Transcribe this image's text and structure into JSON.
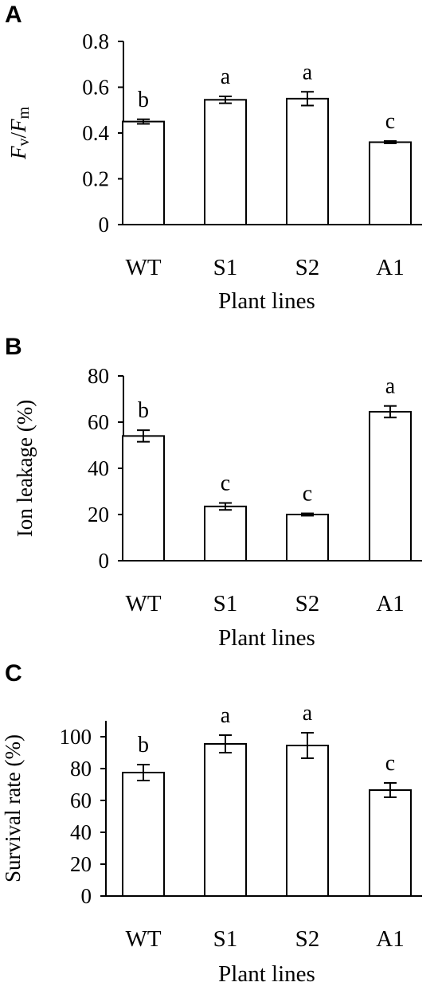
{
  "chart_data": [
    {
      "panel_label": "A",
      "type": "bar",
      "categories": [
        "WT",
        "S1",
        "S2",
        "A1"
      ],
      "values": [
        0.45,
        0.545,
        0.55,
        0.36
      ],
      "errors": [
        0.01,
        0.015,
        0.03,
        0.005
      ],
      "significance": [
        "b",
        "a",
        "a",
        "c"
      ],
      "xlabel": "Plant lines",
      "ylabel": "Fv/Fm",
      "ylim": [
        0,
        0.8
      ],
      "yticks": [
        "0",
        "0.2",
        "0.4",
        "0.6",
        "0.8"
      ],
      "grid": false
    },
    {
      "panel_label": "B",
      "type": "bar",
      "categories": [
        "WT",
        "S1",
        "S2",
        "A1"
      ],
      "values": [
        54,
        23.5,
        20,
        64.5
      ],
      "errors": [
        2.5,
        1.5,
        0.5,
        2.5
      ],
      "significance": [
        "b",
        "c",
        "c",
        "a"
      ],
      "xlabel": "Plant lines",
      "ylabel": "Ion leakage (%)",
      "ylim": [
        0,
        80
      ],
      "yticks": [
        "0",
        "20",
        "40",
        "60",
        "80"
      ],
      "grid": false
    },
    {
      "panel_label": "C",
      "type": "bar",
      "categories": [
        "WT",
        "S1",
        "S2",
        "A1"
      ],
      "values": [
        77.5,
        95.5,
        94.5,
        66.5
      ],
      "errors": [
        5,
        5.5,
        8,
        4.5
      ],
      "significance": [
        "b",
        "a",
        "a",
        "c"
      ],
      "xlabel": "Plant lines",
      "ylabel": "Survival rate (%)",
      "ylim": [
        0,
        110
      ],
      "yticks": [
        "0",
        "20",
        "40",
        "60",
        "80",
        "100"
      ],
      "grid": false
    }
  ]
}
